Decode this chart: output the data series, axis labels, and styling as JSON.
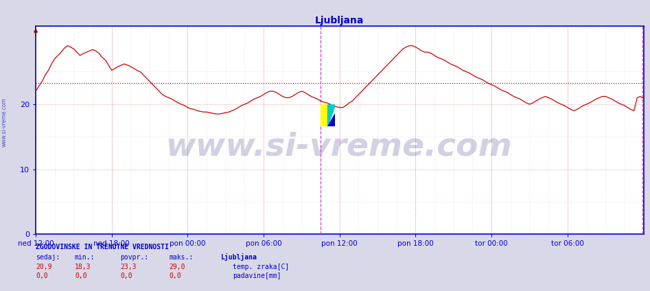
{
  "title": "Ljubljana",
  "title_color": "#0000cc",
  "title_fontsize": 10,
  "bg_color": "#d8d8e8",
  "plot_bg_color": "#ffffff",
  "line_color": "#cc0000",
  "avg_line_color": "#cc0000",
  "avg_value": 23.3,
  "x_tick_labels": [
    "ned 12:00",
    "ned 18:00",
    "pon 00:00",
    "pon 06:00",
    "pon 12:00",
    "pon 18:00",
    "tor 00:00",
    "tor 06:00"
  ],
  "x_tick_positions": [
    0,
    72,
    144,
    216,
    288,
    360,
    432,
    504
  ],
  "vline1_x": 270,
  "vline2_x": 575,
  "vline_color": "#cc44cc",
  "yticks": [
    0,
    10,
    20
  ],
  "ylim": [
    0,
    32
  ],
  "xlim": [
    0,
    576
  ],
  "grid_color": "#dd8888",
  "watermark": "www.si-vreme.com",
  "watermark_color": "#000066",
  "watermark_alpha": 0.18,
  "watermark_fontsize": 34,
  "axis_color": "#0000cc",
  "legend_title": "Ljubljana",
  "legend_items": [
    {
      "label": "temp. zraka[C]",
      "color": "#cc0000"
    },
    {
      "label": "padavine[mm]",
      "color": "#0000bb"
    }
  ],
  "stats_label": "ZGODOVINSKE IN TRENUTNE VREDNOSTI",
  "stats_headers": [
    "sedaj:",
    "min.:",
    "povpr.:",
    "maks.:",
    "Ljubljana"
  ],
  "stats_rows": [
    [
      "20,9",
      "18,3",
      "23,3",
      "29,0"
    ],
    [
      "0,0",
      "0,0",
      "0,0",
      "0,0"
    ]
  ],
  "temp_data_x": [
    0,
    3,
    6,
    9,
    12,
    15,
    18,
    21,
    24,
    27,
    30,
    33,
    36,
    39,
    42,
    45,
    48,
    51,
    54,
    57,
    60,
    63,
    66,
    69,
    72,
    75,
    78,
    81,
    84,
    87,
    90,
    93,
    96,
    99,
    102,
    105,
    108,
    111,
    114,
    117,
    120,
    123,
    126,
    129,
    132,
    135,
    138,
    141,
    144,
    147,
    150,
    153,
    156,
    159,
    162,
    165,
    168,
    171,
    174,
    177,
    180,
    183,
    186,
    189,
    192,
    195,
    198,
    201,
    204,
    207,
    210,
    213,
    216,
    219,
    222,
    225,
    228,
    231,
    234,
    237,
    240,
    243,
    246,
    249,
    252,
    255,
    258,
    261,
    264,
    267,
    270,
    273,
    276,
    279,
    282,
    285,
    288,
    291,
    294,
    297,
    300,
    303,
    306,
    309,
    312,
    315,
    318,
    321,
    324,
    327,
    330,
    333,
    336,
    339,
    342,
    345,
    348,
    351,
    354,
    357,
    360,
    363,
    366,
    369,
    372,
    375,
    378,
    381,
    384,
    387,
    390,
    393,
    396,
    399,
    402,
    405,
    408,
    411,
    414,
    417,
    420,
    423,
    426,
    429,
    432,
    435,
    438,
    441,
    444,
    447,
    450,
    453,
    456,
    459,
    462,
    465,
    468,
    471,
    474,
    477,
    480,
    483,
    486,
    489,
    492,
    495,
    498,
    501,
    504,
    507,
    510,
    513,
    516,
    519,
    522,
    525,
    528,
    531,
    534,
    537,
    540,
    543,
    546,
    549,
    552,
    555,
    558,
    561,
    564,
    567,
    570,
    573,
    576
  ],
  "temp_data_y": [
    22.0,
    22.8,
    23.5,
    24.5,
    25.2,
    26.2,
    27.0,
    27.5,
    28.0,
    28.6,
    29.0,
    28.8,
    28.5,
    28.0,
    27.5,
    27.8,
    28.0,
    28.2,
    28.4,
    28.2,
    27.8,
    27.2,
    26.8,
    26.0,
    25.2,
    25.5,
    25.8,
    26.0,
    26.2,
    26.0,
    25.8,
    25.5,
    25.2,
    25.0,
    24.5,
    24.0,
    23.5,
    23.0,
    22.5,
    22.0,
    21.5,
    21.2,
    21.0,
    20.8,
    20.5,
    20.2,
    20.0,
    19.8,
    19.5,
    19.3,
    19.2,
    19.0,
    18.9,
    18.8,
    18.8,
    18.7,
    18.6,
    18.5,
    18.5,
    18.6,
    18.7,
    18.8,
    19.0,
    19.2,
    19.5,
    19.8,
    20.0,
    20.2,
    20.5,
    20.8,
    21.0,
    21.2,
    21.5,
    21.8,
    22.0,
    22.0,
    21.8,
    21.5,
    21.2,
    21.0,
    21.0,
    21.2,
    21.5,
    21.8,
    22.0,
    21.8,
    21.5,
    21.2,
    21.0,
    20.8,
    20.5,
    20.3,
    20.2,
    20.0,
    19.8,
    19.6,
    19.5,
    19.5,
    19.8,
    20.2,
    20.5,
    21.0,
    21.5,
    22.0,
    22.5,
    23.0,
    23.5,
    24.0,
    24.5,
    25.0,
    25.5,
    26.0,
    26.5,
    27.0,
    27.5,
    28.0,
    28.5,
    28.8,
    29.0,
    29.0,
    28.8,
    28.5,
    28.2,
    28.0,
    28.0,
    27.8,
    27.5,
    27.2,
    27.0,
    26.8,
    26.5,
    26.2,
    26.0,
    25.8,
    25.5,
    25.2,
    25.0,
    24.8,
    24.5,
    24.2,
    24.0,
    23.8,
    23.5,
    23.2,
    23.0,
    22.8,
    22.5,
    22.2,
    22.0,
    21.8,
    21.5,
    21.2,
    21.0,
    20.8,
    20.5,
    20.2,
    20.0,
    20.2,
    20.5,
    20.8,
    21.0,
    21.2,
    21.0,
    20.8,
    20.5,
    20.2,
    20.0,
    19.8,
    19.5,
    19.2,
    19.0,
    19.2,
    19.5,
    19.8,
    20.0,
    20.2,
    20.5,
    20.8,
    21.0,
    21.2,
    21.2,
    21.0,
    20.8,
    20.5,
    20.2,
    20.0,
    19.8,
    19.5,
    19.2,
    19.0,
    21.0,
    21.2,
    20.9
  ]
}
